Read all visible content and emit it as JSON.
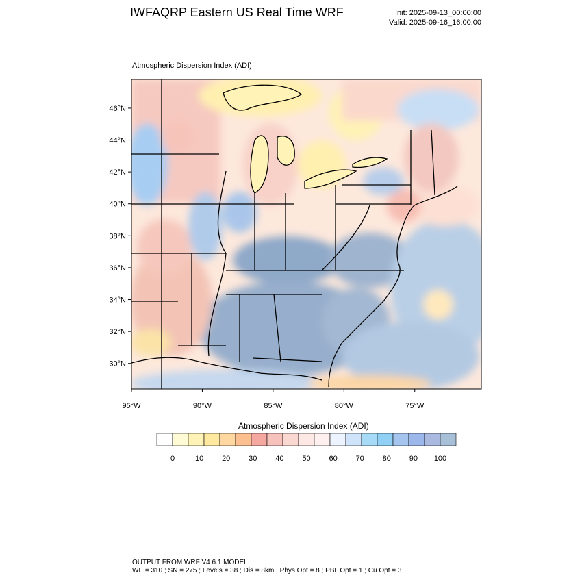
{
  "header": {
    "title": "IWFAQRP Eastern US Real Time WRF",
    "init": "Init: 2025-09-13_00:00:00",
    "valid": "Valid: 2025-09-16_16:00:00"
  },
  "panel": {
    "label": "Atmospheric Dispersion Index   (ADI)"
  },
  "axes": {
    "lat_labels": [
      "46°N",
      "44°N",
      "42°N",
      "40°N",
      "38°N",
      "36°N",
      "34°N",
      "32°N",
      "30°N"
    ],
    "lon_labels": [
      "95°W",
      "90°W",
      "85°W",
      "80°W",
      "75°W"
    ],
    "lat_values": [
      46,
      44,
      42,
      40,
      38,
      36,
      34,
      32,
      30
    ],
    "lon_values": [
      -95,
      -90,
      -85,
      -80,
      -75
    ],
    "lat_range": [
      28.4,
      47.8
    ],
    "lon_range": [
      -95.0,
      -70.3
    ]
  },
  "colorbar": {
    "title": "Atmospheric Dispersion Index  (ADI)",
    "tick_labels": [
      "0",
      "10",
      "20",
      "30",
      "40",
      "50",
      "60",
      "70",
      "80",
      "90",
      "100"
    ],
    "colors": [
      "#ffffff",
      "#fffbd5",
      "#fff2b6",
      "#ffe8a0",
      "#ffd7a0",
      "#fbbf90",
      "#f5a8a0",
      "#f8c2bc",
      "#fbd7d2",
      "#fde8e5",
      "#fff0f0",
      "#eef4ff",
      "#cfe4fa",
      "#a6daf6",
      "#8fd0f4",
      "#a5c5ee",
      "#9cb7ea",
      "#aab9df",
      "#a8bfd8"
    ]
  },
  "footer": {
    "line1": "OUTPUT FROM WRF V4.6.1 MODEL",
    "line2": "WE = 310 ; SN = 275 ; Levels = 38 ; Dis = 8km ; Phys Opt = 8 ; PBL Opt = 1 ; Cu Opt = 3"
  }
}
